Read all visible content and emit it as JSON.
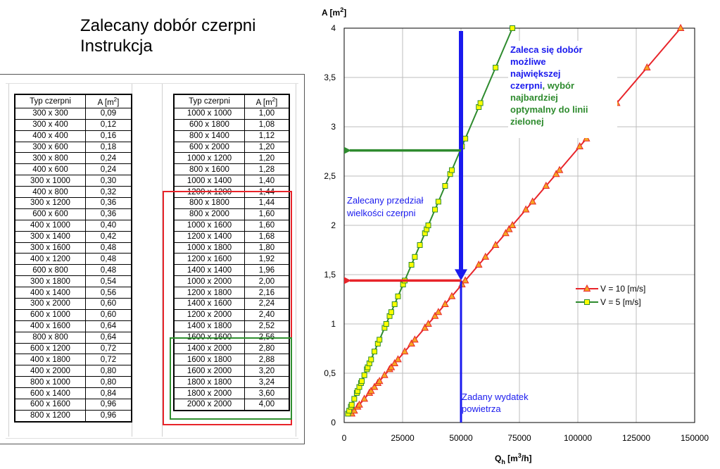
{
  "title": {
    "line1": "Zalecany dobór czerpni",
    "line2": "Instrukcja"
  },
  "tables": {
    "header": {
      "typ": "Typ czerpni",
      "area_main": "A [m",
      "area_sup": "2",
      "area_end": "]"
    },
    "left": [
      [
        "300 x 300",
        "0,09"
      ],
      [
        "300 x 400",
        "0,12"
      ],
      [
        "400 x 400",
        "0,16"
      ],
      [
        "300 x 600",
        "0,18"
      ],
      [
        "300 x 800",
        "0,24"
      ],
      [
        "400 x 600",
        "0,24"
      ],
      [
        "300 x 1000",
        "0,30"
      ],
      [
        "400 x 800",
        "0,32"
      ],
      [
        "300 x 1200",
        "0,36"
      ],
      [
        "600 x 600",
        "0,36"
      ],
      [
        "400 x 1000",
        "0,40"
      ],
      [
        "300 x 1400",
        "0,42"
      ],
      [
        "300 x 1600",
        "0,48"
      ],
      [
        "400 x 1200",
        "0,48"
      ],
      [
        "600 x 800",
        "0,48"
      ],
      [
        "300 x 1800",
        "0,54"
      ],
      [
        "400 x 1400",
        "0,56"
      ],
      [
        "300 x 2000",
        "0,60"
      ],
      [
        "600 x 1000",
        "0,60"
      ],
      [
        "400 x 1600",
        "0,64"
      ],
      [
        "800 x 800",
        "0,64"
      ],
      [
        "600 x 1200",
        "0,72"
      ],
      [
        "400 x 1800",
        "0,72"
      ],
      [
        "400 x 2000",
        "0,80"
      ],
      [
        "800 x 1000",
        "0,80"
      ],
      [
        "600 x 1400",
        "0,84"
      ],
      [
        "600 x 1600",
        "0,96"
      ],
      [
        "800 x 1200",
        "0,96"
      ]
    ],
    "right": [
      [
        "1000 x 1000",
        "1,00"
      ],
      [
        "600 x 1800",
        "1,08"
      ],
      [
        "800 x 1400",
        "1,12"
      ],
      [
        "600 x 2000",
        "1,20"
      ],
      [
        "1000 x 1200",
        "1,20"
      ],
      [
        "800 x 1600",
        "1,28"
      ],
      [
        "1000 x 1400",
        "1,40"
      ],
      [
        "1200 x 1200",
        "1,44"
      ],
      [
        "800 x 1800",
        "1,44"
      ],
      [
        "800 x 2000",
        "1,60"
      ],
      [
        "1000 x 1600",
        "1,60"
      ],
      [
        "1200 x 1400",
        "1,68"
      ],
      [
        "1000 x 1800",
        "1,80"
      ],
      [
        "1200 x 1600",
        "1,92"
      ],
      [
        "1400 x 1400",
        "1,96"
      ],
      [
        "1000 x 2000",
        "2,00"
      ],
      [
        "1200 x 1800",
        "2,16"
      ],
      [
        "1400 x 1600",
        "2,24"
      ],
      [
        "1200 x 2000",
        "2,40"
      ],
      [
        "1400 x 1800",
        "2,52"
      ],
      [
        "1600 x 1600",
        "2,56"
      ],
      [
        "1400 x 2000",
        "2,80"
      ],
      [
        "1600 x 1800",
        "2,88"
      ],
      [
        "1600 x 2000",
        "3,20"
      ],
      [
        "1800 x 1800",
        "3,24"
      ],
      [
        "1800 x 2000",
        "3,60"
      ],
      [
        "2000 x 2000",
        "4,00"
      ]
    ]
  },
  "chart_data": {
    "type": "scatter",
    "ylabel": {
      "main": "A [m",
      "sup": "2",
      "end": "]"
    },
    "xlabel": {
      "q": "Q",
      "sub": "h",
      "main": " [m",
      "sup": "3",
      "end": "/h]"
    },
    "xlim": [
      0,
      150000
    ],
    "ylim": [
      0,
      4
    ],
    "xticks": [
      0,
      25000,
      50000,
      75000,
      100000,
      125000,
      150000
    ],
    "xtick_labels": [
      "0",
      "25000",
      "50000",
      "75000",
      "100000",
      "125000",
      "150000"
    ],
    "yticks": [
      0,
      0.5,
      1,
      1.5,
      2,
      2.5,
      3,
      3.5,
      4
    ],
    "ytick_labels": [
      "0",
      "0,5",
      "1",
      "1,5",
      "2",
      "2,5",
      "3",
      "3,5",
      "4"
    ],
    "grid": true,
    "legend_position": "right-middle",
    "series": [
      {
        "name": "V = 10 [m/s]",
        "color": "#e8242a",
        "marker": "triangle",
        "marker_fill": "#f5a623",
        "x_per_y": 36000,
        "y": [
          0.09,
          0.12,
          0.16,
          0.18,
          0.24,
          0.3,
          0.32,
          0.36,
          0.4,
          0.42,
          0.48,
          0.54,
          0.56,
          0.6,
          0.64,
          0.72,
          0.8,
          0.84,
          0.96,
          1.0,
          1.08,
          1.12,
          1.2,
          1.28,
          1.4,
          1.44,
          1.6,
          1.68,
          1.8,
          1.92,
          1.96,
          2.0,
          2.16,
          2.24,
          2.4,
          2.52,
          2.56,
          2.8,
          2.88,
          3.2,
          3.24,
          3.6,
          4.0
        ]
      },
      {
        "name": "V = 5 [m/s]",
        "color": "#2e8b2e",
        "marker": "square",
        "marker_fill": "#ffff00",
        "x_per_y": 18000,
        "y": [
          0.09,
          0.12,
          0.16,
          0.18,
          0.24,
          0.3,
          0.32,
          0.36,
          0.4,
          0.42,
          0.48,
          0.54,
          0.56,
          0.6,
          0.64,
          0.72,
          0.8,
          0.84,
          0.96,
          1.0,
          1.08,
          1.12,
          1.2,
          1.28,
          1.4,
          1.44,
          1.6,
          1.68,
          1.8,
          1.92,
          1.96,
          2.0,
          2.16,
          2.24,
          2.4,
          2.52,
          2.56,
          2.8,
          2.88,
          3.2,
          3.24,
          3.6,
          4.0
        ]
      }
    ],
    "reference_lines": {
      "vertical_x": 50000,
      "vertical_color": "#1a1aee",
      "red_arrow_y": 1.44,
      "green_arrow_y": 2.76
    },
    "annotations": {
      "blue_bold_1": "Zaleca się dobór",
      "blue_bold_2": "możliwe",
      "blue_bold_3": "największej",
      "blue_mixed_a": "czerpni",
      "green_mixed_b": ", wybór",
      "green_4": "najbardziej",
      "green_5": "optymalny do linii",
      "green_6": "zielonej",
      "range_1": "Zalecany przedział",
      "range_2": "wielkości czerpni",
      "flow_1": "Zadany wydatek",
      "flow_2": "powietrza"
    }
  }
}
